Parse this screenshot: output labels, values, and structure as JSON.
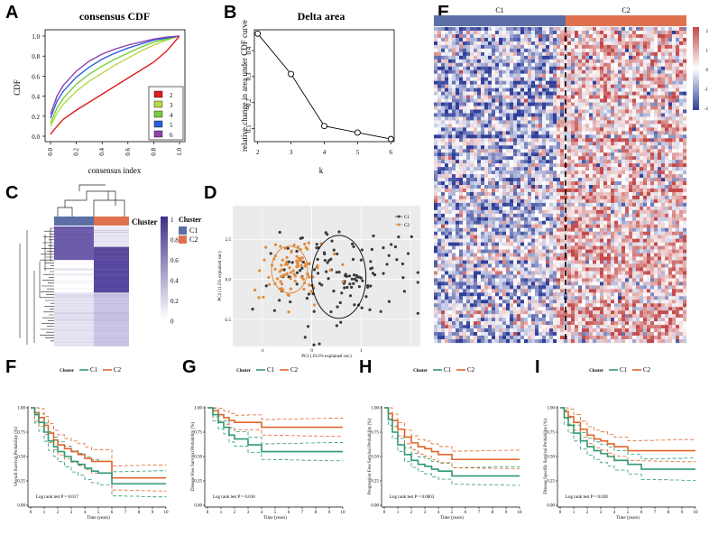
{
  "panels": {
    "A": "A",
    "B": "B",
    "C": "C",
    "D": "D",
    "E": "E",
    "F": "F",
    "G": "G",
    "H": "H",
    "I": "I"
  },
  "colors": {
    "C1": "#5b6fa6",
    "C2": "#e0714f",
    "km_C1": "#2e9a74",
    "km_C2": "#e0662a",
    "pca_C1": "#3a3a3a",
    "pca_C2": "#e08a3c",
    "cdf2": "#e31a1c",
    "cdf3": "#b8d84a",
    "cdf4": "#7acc3c",
    "cdf5": "#2b5fe0",
    "cdf6": "#8e44ad",
    "consensus_dark": "#4b3b8f"
  },
  "chart_data": [
    {
      "id": "A",
      "type": "line",
      "title": "consensus CDF",
      "xlabel": "consensus index",
      "ylabel": "CDF",
      "xlim": [
        0,
        1
      ],
      "ylim": [
        0,
        1
      ],
      "xticks": [
        "0.0",
        "0.2",
        "0.4",
        "0.6",
        "0.8",
        "1.0"
      ],
      "yticks": [
        "0.0",
        "0.2",
        "0.4",
        "0.6",
        "0.8",
        "1.0"
      ],
      "legend_position": "bottom-right",
      "x": [
        0,
        0.05,
        0.1,
        0.2,
        0.3,
        0.4,
        0.5,
        0.6,
        0.7,
        0.8,
        0.9,
        1.0
      ],
      "series": [
        {
          "name": "2",
          "values": [
            0.02,
            0.1,
            0.17,
            0.26,
            0.34,
            0.42,
            0.5,
            0.58,
            0.66,
            0.74,
            0.85,
            1.0
          ]
        },
        {
          "name": "3",
          "values": [
            0.1,
            0.23,
            0.32,
            0.45,
            0.55,
            0.63,
            0.71,
            0.78,
            0.85,
            0.91,
            0.96,
            1.0
          ]
        },
        {
          "name": "4",
          "values": [
            0.13,
            0.28,
            0.38,
            0.52,
            0.62,
            0.7,
            0.77,
            0.83,
            0.89,
            0.94,
            0.97,
            1.0
          ]
        },
        {
          "name": "5",
          "values": [
            0.18,
            0.35,
            0.45,
            0.59,
            0.69,
            0.77,
            0.83,
            0.88,
            0.92,
            0.96,
            0.98,
            1.0
          ]
        },
        {
          "name": "6",
          "values": [
            0.22,
            0.4,
            0.51,
            0.65,
            0.75,
            0.82,
            0.87,
            0.91,
            0.94,
            0.97,
            0.99,
            1.0
          ]
        }
      ]
    },
    {
      "id": "B",
      "type": "line",
      "title": "Delta area",
      "xlabel": "k",
      "ylabel": "relative change in area under CDF curve",
      "xlim": [
        1.9,
        6.1
      ],
      "ylim": [
        0.05,
        0.48
      ],
      "xticks": [
        "2",
        "3",
        "4",
        "5",
        "6"
      ],
      "yticks": [
        "0.1",
        "0.2",
        "0.3",
        "0.4"
      ],
      "x": [
        2,
        3,
        4,
        5,
        6
      ],
      "values": [
        0.465,
        0.31,
        0.11,
        0.085,
        0.06
      ]
    },
    {
      "id": "C",
      "type": "heatmap",
      "legend_title": "Cluster",
      "legend_items": [
        "C1",
        "C2"
      ],
      "annotation_label": "Cluster",
      "colorbar_ticks": [
        "1",
        "0.8",
        "0.6",
        "0.4",
        "0.2",
        "0"
      ]
    },
    {
      "id": "D",
      "type": "scatter",
      "xlabel": "PC1 (19.2% explained var.)",
      "ylabel": "PC2 (11.5% explained var.)",
      "xticks": [
        "-1",
        "0",
        "1"
      ],
      "yticks": [
        "2.5",
        "0.0",
        "-2.5"
      ],
      "legend": [
        "C1",
        "C2"
      ],
      "seed": 7,
      "clusters": [
        {
          "name": "C1",
          "center": [
            0.55,
            0.15
          ],
          "spread": [
            0.7,
            1.5
          ],
          "n": 130
        },
        {
          "name": "C2",
          "center": [
            -0.45,
            0.6
          ],
          "spread": [
            0.35,
            1.0
          ],
          "n": 90
        }
      ]
    },
    {
      "id": "E",
      "type": "heatmap",
      "groups": [
        "C1",
        "C2"
      ],
      "group_fraction": [
        0.485,
        0.515
      ],
      "colorbar_ticks": [
        "2",
        "1",
        "0",
        "-1",
        "-2"
      ],
      "seed": 3
    },
    {
      "id": "F",
      "type": "line",
      "legend_title": "Cluster",
      "legend": [
        "C1",
        "C2"
      ],
      "ylabel": "Overall Survival Probability (%)",
      "xlabel": "Time (years)",
      "annotation": "Log rank test P = 0.017",
      "xticks": [
        "0",
        "1",
        "2",
        "3",
        "4",
        "5",
        "6",
        "7",
        "8",
        "9",
        "10"
      ],
      "yticks": [
        "1.00",
        "0.75",
        "0.50",
        "0.25",
        "0.00"
      ],
      "C1": {
        "t": [
          0,
          0.3,
          0.6,
          1,
          1.3,
          1.7,
          2,
          2.5,
          3,
          3.5,
          4,
          4.5,
          5,
          6,
          7,
          8,
          9,
          10
        ],
        "s": [
          1,
          0.93,
          0.85,
          0.75,
          0.66,
          0.6,
          0.55,
          0.5,
          0.45,
          0.42,
          0.38,
          0.35,
          0.33,
          0.22,
          0.22,
          0.22,
          0.22,
          0.22
        ]
      },
      "C2": {
        "t": [
          0,
          0.3,
          0.6,
          1,
          1.3,
          1.7,
          2,
          2.5,
          3,
          3.5,
          4,
          4.5,
          5,
          6,
          7,
          8,
          9,
          10
        ],
        "s": [
          1,
          0.95,
          0.9,
          0.82,
          0.74,
          0.67,
          0.62,
          0.58,
          0.55,
          0.52,
          0.48,
          0.45,
          0.45,
          0.28,
          0.28,
          0.28,
          0.28,
          0.28
        ]
      },
      "ci_width": 0.14
    },
    {
      "id": "G",
      "type": "line",
      "legend_title": "Cluster",
      "legend": [
        "C1",
        "C2"
      ],
      "ylabel": "Disease Free Survival Probability (%)",
      "xlabel": "Time (years)",
      "annotation": "Log rank test P = 0.018",
      "xticks": [
        "0",
        "1",
        "2",
        "3",
        "4",
        "5",
        "6",
        "7",
        "8",
        "9",
        "10"
      ],
      "yticks": [
        "1.00",
        "0.75",
        "0.50",
        "0.25",
        "0.00"
      ],
      "C1": {
        "t": [
          0,
          0.4,
          0.8,
          1.2,
          1.6,
          2,
          3,
          4,
          5,
          6,
          7,
          8,
          9,
          10
        ],
        "s": [
          1,
          0.93,
          0.85,
          0.8,
          0.72,
          0.68,
          0.62,
          0.55,
          0.55,
          0.55,
          0.55,
          0.55,
          0.55,
          0.55
        ]
      },
      "C2": {
        "t": [
          0,
          0.4,
          0.8,
          1.2,
          1.6,
          2,
          3,
          4,
          5,
          6,
          7,
          8,
          9,
          10
        ],
        "s": [
          1,
          0.97,
          0.93,
          0.9,
          0.87,
          0.85,
          0.85,
          0.8,
          0.8,
          0.8,
          0.8,
          0.8,
          0.8,
          0.8
        ]
      },
      "ci_width": 0.1
    },
    {
      "id": "H",
      "type": "line",
      "legend_title": "Cluster",
      "legend": [
        "C1",
        "C2"
      ],
      "ylabel": "Progression Free Survival Probability (%)",
      "xlabel": "Time (years)",
      "annotation": "Log rank test P = 0.0063",
      "xticks": [
        "0",
        "1",
        "2",
        "3",
        "4",
        "5",
        "6",
        "7",
        "8",
        "9",
        "10"
      ],
      "yticks": [
        "1.00",
        "0.75",
        "0.50",
        "0.25",
        "0.00"
      ],
      "C1": {
        "t": [
          0,
          0.3,
          0.6,
          1,
          1.5,
          2,
          2.5,
          3,
          3.5,
          4,
          5,
          6,
          7,
          8,
          9,
          10
        ],
        "s": [
          1,
          0.88,
          0.75,
          0.62,
          0.52,
          0.46,
          0.42,
          0.4,
          0.37,
          0.35,
          0.3,
          0.3,
          0.3,
          0.3,
          0.3,
          0.3
        ]
      },
      "C2": {
        "t": [
          0,
          0.3,
          0.6,
          1,
          1.5,
          2,
          2.5,
          3,
          3.5,
          4,
          5,
          6,
          7,
          8,
          9,
          10
        ],
        "s": [
          1,
          0.94,
          0.87,
          0.78,
          0.7,
          0.64,
          0.6,
          0.58,
          0.55,
          0.52,
          0.47,
          0.47,
          0.47,
          0.47,
          0.47,
          0.47
        ]
      },
      "ci_width": 0.1
    },
    {
      "id": "I",
      "type": "line",
      "legend_title": "Cluster",
      "legend": [
        "C1",
        "C2"
      ],
      "ylabel": "Disease Specific Survival Probability (%)",
      "xlabel": "Time (years)",
      "annotation": "Log rank test P = 0.028",
      "xticks": [
        "0",
        "1",
        "2",
        "3",
        "4",
        "5",
        "6",
        "7",
        "8",
        "9",
        "10"
      ],
      "yticks": [
        "1.00",
        "0.75",
        "0.50",
        "0.25",
        "0.00"
      ],
      "C1": {
        "t": [
          0,
          0.3,
          0.6,
          1,
          1.5,
          2,
          2.5,
          3,
          3.5,
          4,
          5,
          6,
          7,
          8,
          9,
          10
        ],
        "s": [
          1,
          0.9,
          0.82,
          0.74,
          0.66,
          0.6,
          0.56,
          0.53,
          0.5,
          0.46,
          0.42,
          0.37,
          0.37,
          0.37,
          0.37,
          0.37
        ]
      },
      "C2": {
        "t": [
          0,
          0.3,
          0.6,
          1,
          1.5,
          2,
          2.5,
          3,
          3.5,
          4,
          5,
          6,
          7,
          8,
          9,
          10
        ],
        "s": [
          1,
          0.96,
          0.91,
          0.85,
          0.78,
          0.72,
          0.68,
          0.66,
          0.63,
          0.6,
          0.56,
          0.56,
          0.56,
          0.56,
          0.56,
          0.56
        ]
      },
      "ci_width": 0.12
    }
  ]
}
